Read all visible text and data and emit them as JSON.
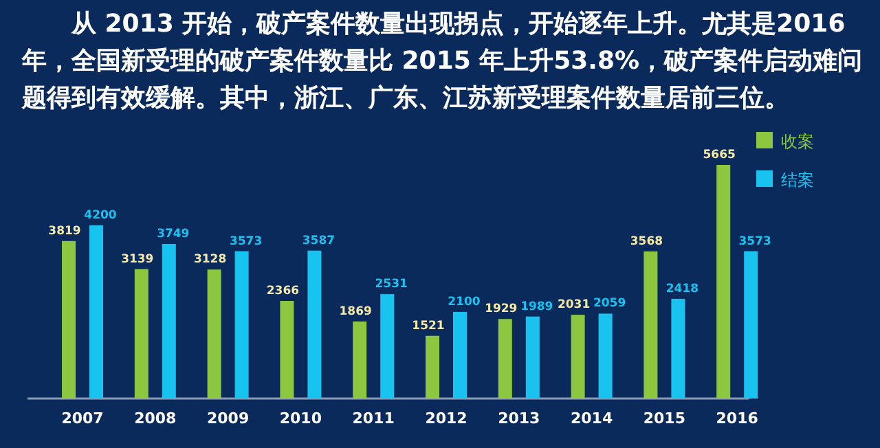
{
  "chart_data": {
    "type": "bar",
    "title": "从 2013 开始，破产案件数量出现拐点，开始逐年上升。尤其是2016 年，全国新受理的破产案件数量比 2015 年上升53.8%，破产案件启动难问题得到有效缓解。其中，浙江、广东、江苏新受理案件数量居前三位。",
    "categories": [
      "2007",
      "2008",
      "2009",
      "2010",
      "2011",
      "2012",
      "2013",
      "2014",
      "2015",
      "2016"
    ],
    "series": [
      {
        "name": "收案",
        "color": "#8dc63f",
        "values": [
          3819,
          3139,
          3128,
          2366,
          1869,
          1521,
          1929,
          2031,
          3568,
          5665
        ]
      },
      {
        "name": "结案",
        "color": "#19c3f0",
        "values": [
          4200,
          3749,
          3573,
          3587,
          2531,
          2100,
          1989,
          2059,
          2418,
          3573
        ]
      }
    ],
    "data_labels": true,
    "legend": "top right"
  }
}
